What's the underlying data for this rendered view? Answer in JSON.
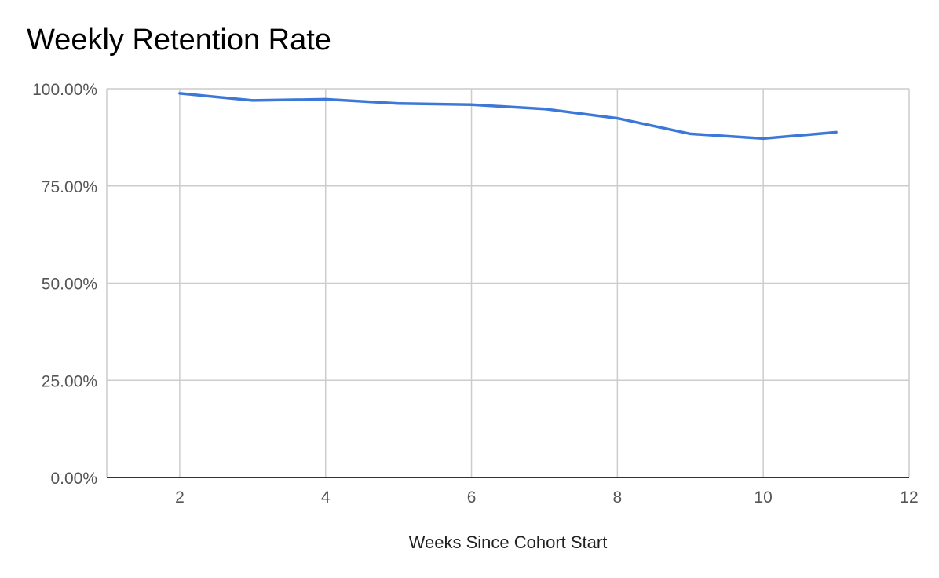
{
  "chart_data": {
    "type": "line",
    "title": "Weekly Retention Rate",
    "xlabel": "Weeks Since Cohort Start",
    "ylabel": "",
    "xlim": [
      1,
      12
    ],
    "ylim": [
      0,
      100
    ],
    "x_ticks": [
      2,
      4,
      6,
      8,
      10,
      12
    ],
    "y_ticks": [
      0,
      25,
      50,
      75,
      100
    ],
    "y_tick_labels": [
      "0.00%",
      "25.00%",
      "50.00%",
      "75.00%",
      "100.00%"
    ],
    "grid": true,
    "legend": "none",
    "series": [
      {
        "color": "#3c78d8",
        "x": [
          2,
          3,
          4,
          5,
          6,
          7,
          8,
          9,
          10,
          11
        ],
        "y": [
          98.8,
          97.0,
          97.3,
          96.2,
          95.9,
          94.8,
          92.4,
          88.4,
          87.2,
          88.8
        ]
      }
    ]
  }
}
